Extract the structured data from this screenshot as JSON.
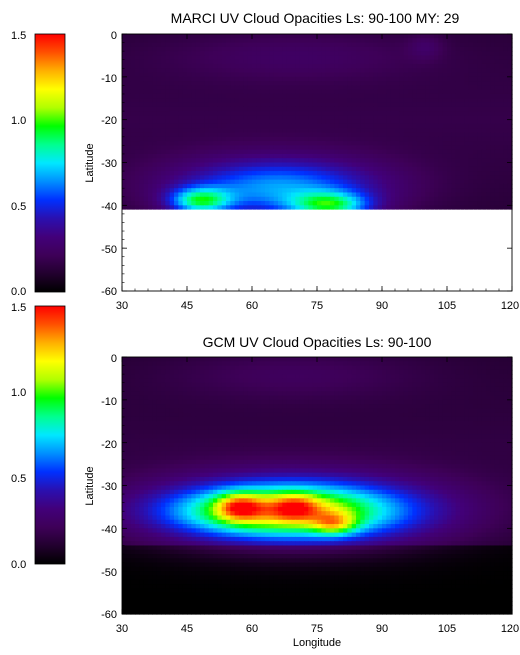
{
  "colors": {
    "colormap": [
      "#000000",
      "#22002e",
      "#3e0058",
      "#42007a",
      "#2a10b0",
      "#0030ff",
      "#0090ff",
      "#00e8ff",
      "#00ff90",
      "#00ff00",
      "#b0ff00",
      "#ffff00",
      "#ffb000",
      "#ff5000",
      "#ff0000"
    ],
    "no_data": "#ffffff"
  },
  "chart_data": [
    {
      "type": "heatmap",
      "name": "colorbar-1",
      "ticks": [
        "0.0",
        "0.5",
        "1.0",
        "1.5"
      ],
      "range": [
        0,
        1.5
      ]
    },
    {
      "type": "heatmap",
      "name": "marci",
      "title": "MARCI UV Cloud Opacities Ls: 90-100 MY: 29",
      "ylabel": "Latitude",
      "xlabel": "",
      "xlim": [
        30,
        120
      ],
      "ylim": [
        -60,
        0
      ],
      "xticks": [
        "30",
        "45",
        "60",
        "75",
        "90",
        "105",
        "120"
      ],
      "yticks": [
        "0",
        "-10",
        "-20",
        "-30",
        "-40",
        "-50",
        "-60"
      ],
      "no_data_below_latitude": -41,
      "background_opacity": 0.18,
      "blobs": [
        {
          "lon": 66,
          "lat": -36,
          "lon_radius": 24,
          "lat_radius": 7,
          "peak": 0.52
        },
        {
          "lon": 48,
          "lat": -39,
          "lon_radius": 7,
          "lat_radius": 3,
          "peak": 0.58
        },
        {
          "lon": 78,
          "lat": -40,
          "lon_radius": 9,
          "lat_radius": 3,
          "peak": 0.56
        },
        {
          "lon": 70,
          "lat": -5,
          "lon_radius": 30,
          "lat_radius": 6,
          "peak": 0.1
        },
        {
          "lon": 100,
          "lat": -3,
          "lon_radius": 4,
          "lat_radius": 3,
          "peak": 0.09
        }
      ]
    },
    {
      "type": "heatmap",
      "name": "colorbar-2",
      "ticks": [
        "0.0",
        "0.5",
        "1.0",
        "1.5"
      ],
      "range": [
        0,
        1.5
      ]
    },
    {
      "type": "heatmap",
      "name": "gcm",
      "title": "GCM UV Cloud Opacities Ls: 90-100",
      "ylabel": "Latitude",
      "xlabel": "Longitude",
      "xlim": [
        30,
        120
      ],
      "ylim": [
        -60,
        0
      ],
      "xticks": [
        "30",
        "45",
        "60",
        "75",
        "90",
        "105",
        "120"
      ],
      "yticks": [
        "0",
        "-10",
        "-20",
        "-30",
        "-40",
        "-50",
        "-60"
      ],
      "background_opacity": 0.16,
      "dark_below_latitude": -44,
      "blobs": [
        {
          "lon": 70,
          "lat": -36,
          "lon_radius": 32,
          "lat_radius": 8,
          "peak": 0.75
        },
        {
          "lon": 65,
          "lat": -36,
          "lon_radius": 22,
          "lat_radius": 5,
          "peak": 0.45
        },
        {
          "lon": 57,
          "lat": -35,
          "lon_radius": 5,
          "lat_radius": 3,
          "peak": 0.45
        },
        {
          "lon": 70,
          "lat": -35,
          "lon_radius": 5,
          "lat_radius": 3,
          "peak": 0.3
        },
        {
          "lon": 79,
          "lat": -39,
          "lon_radius": 5,
          "lat_radius": 2.5,
          "peak": 0.4
        },
        {
          "lon": 70,
          "lat": -4,
          "lon_radius": 30,
          "lat_radius": 6,
          "peak": 0.1
        }
      ]
    }
  ]
}
